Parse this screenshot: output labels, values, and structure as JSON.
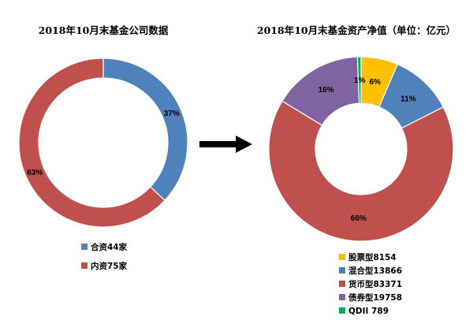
{
  "chart_data": [
    {
      "type": "pie",
      "variant": "donut",
      "title": "2018年10月末基金公司数据",
      "slices": [
        {
          "name": "合资44家",
          "value": 37,
          "label": "37%",
          "color": "#4f81bd"
        },
        {
          "name": "内资75家",
          "value": 63,
          "label": "63%",
          "color": "#c0504d"
        }
      ],
      "legend_position": "bottom"
    },
    {
      "type": "pie",
      "variant": "donut",
      "title": "2018年10月末基金资产净值（单位：亿元）",
      "slices": [
        {
          "name": "股票型8154",
          "value": 8154,
          "label": "6%",
          "color": "#ffc000"
        },
        {
          "name": "混合型13866",
          "value": 13866,
          "label": "11%",
          "color": "#4f81bd"
        },
        {
          "name": "货币型83371",
          "value": 83371,
          "label": "66%",
          "color": "#c0504d"
        },
        {
          "name": "债券型19758",
          "value": 19758,
          "label": "16%",
          "color": "#8064a2"
        },
        {
          "name": "QDII 789",
          "value": 789,
          "label": "1%",
          "color": "#00b050"
        }
      ],
      "legend_position": "bottom"
    }
  ],
  "arrow": {
    "direction": "right",
    "color": "#000000"
  }
}
